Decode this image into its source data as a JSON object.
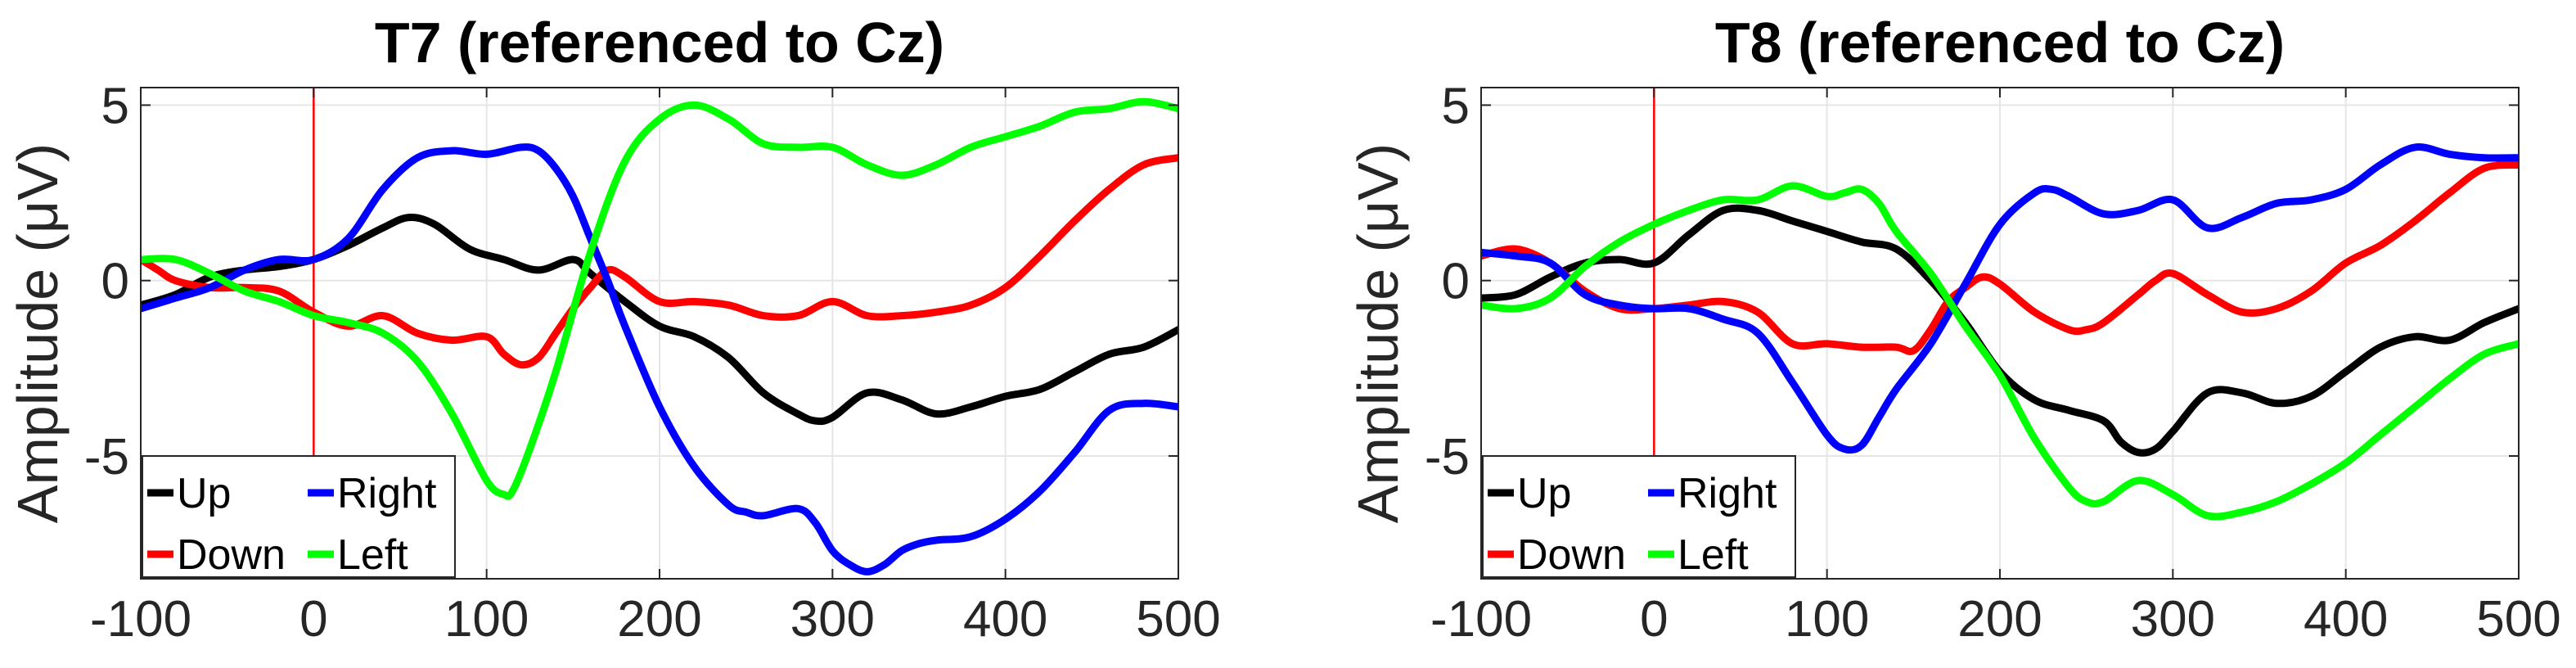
{
  "chart_data": [
    {
      "type": "line",
      "title": "T7 (referenced to Cz)",
      "xlabel": "",
      "ylabel": "Amplitude (μV)",
      "xlim": [
        -100,
        500
      ],
      "ylim": [
        -8.5,
        5.5
      ],
      "xticks": [
        -100,
        0,
        100,
        200,
        300,
        400,
        500
      ],
      "yticks": [
        -5,
        0,
        5
      ],
      "grid": true,
      "stimulus_line": {
        "x": 0,
        "color": "#ff0000"
      },
      "legend": {
        "position": "bottom-left",
        "columns": 2
      },
      "series": [
        {
          "name": "Up",
          "color": "#000000",
          "x": [
            -100,
            -80,
            -60,
            -40,
            -20,
            0,
            20,
            40,
            55,
            70,
            90,
            110,
            130,
            150,
            160,
            180,
            200,
            220,
            240,
            260,
            280,
            290,
            300,
            320,
            340,
            360,
            380,
            400,
            420,
            440,
            460,
            480,
            500
          ],
          "y": [
            -0.7,
            -0.4,
            0.1,
            0.3,
            0.4,
            0.6,
            1.0,
            1.5,
            1.8,
            1.6,
            0.9,
            0.6,
            0.3,
            0.6,
            0.2,
            -0.6,
            -1.3,
            -1.6,
            -2.2,
            -3.2,
            -3.8,
            -4.0,
            -3.9,
            -3.2,
            -3.4,
            -3.8,
            -3.6,
            -3.3,
            -3.1,
            -2.6,
            -2.1,
            -1.9,
            -1.4
          ]
        },
        {
          "name": "Down",
          "color": "#ff0000",
          "x": [
            -100,
            -90,
            -80,
            -60,
            -40,
            -20,
            0,
            20,
            40,
            60,
            80,
            100,
            110,
            120,
            130,
            140,
            150,
            160,
            170,
            180,
            200,
            220,
            240,
            260,
            280,
            300,
            320,
            340,
            360,
            380,
            400,
            420,
            440,
            460,
            480,
            500
          ],
          "y": [
            0.6,
            0.3,
            0.0,
            -0.2,
            -0.2,
            -0.3,
            -0.9,
            -1.3,
            -1.0,
            -1.5,
            -1.7,
            -1.6,
            -2.1,
            -2.4,
            -2.2,
            -1.5,
            -0.8,
            -0.2,
            0.3,
            0.1,
            -0.6,
            -0.6,
            -0.7,
            -1.0,
            -1.0,
            -0.6,
            -1.0,
            -1.0,
            -0.9,
            -0.7,
            -0.2,
            0.7,
            1.7,
            2.6,
            3.3,
            3.5
          ]
        },
        {
          "name": "Right",
          "color": "#0000ff",
          "x": [
            -100,
            -80,
            -60,
            -40,
            -20,
            0,
            20,
            40,
            60,
            80,
            100,
            120,
            130,
            140,
            150,
            160,
            170,
            180,
            200,
            220,
            240,
            250,
            260,
            280,
            290,
            300,
            310,
            320,
            330,
            340,
            350,
            360,
            380,
            400,
            420,
            440,
            460,
            480,
            500
          ],
          "y": [
            -0.8,
            -0.5,
            -0.2,
            0.3,
            0.6,
            0.6,
            1.2,
            2.6,
            3.5,
            3.7,
            3.6,
            3.8,
            3.7,
            3.2,
            2.4,
            1.2,
            0.0,
            -1.3,
            -3.6,
            -5.3,
            -6.4,
            -6.6,
            -6.7,
            -6.5,
            -6.9,
            -7.7,
            -8.1,
            -8.3,
            -8.1,
            -7.7,
            -7.5,
            -7.4,
            -7.3,
            -6.8,
            -6.0,
            -4.9,
            -3.7,
            -3.5,
            -3.6
          ]
        },
        {
          "name": "Left",
          "color": "#00ff00",
          "x": [
            -100,
            -80,
            -60,
            -40,
            -20,
            0,
            20,
            40,
            60,
            80,
            100,
            110,
            115,
            125,
            140,
            160,
            180,
            200,
            220,
            240,
            260,
            280,
            300,
            320,
            340,
            360,
            380,
            400,
            420,
            440,
            460,
            480,
            500
          ],
          "y": [
            0.6,
            0.6,
            0.2,
            -0.3,
            -0.6,
            -1.0,
            -1.2,
            -1.5,
            -2.3,
            -3.8,
            -5.7,
            -6.1,
            -6.0,
            -4.8,
            -2.6,
            0.8,
            3.4,
            4.6,
            5.0,
            4.6,
            3.9,
            3.8,
            3.8,
            3.3,
            3.0,
            3.3,
            3.8,
            4.1,
            4.4,
            4.8,
            4.9,
            5.1,
            4.9
          ]
        }
      ]
    },
    {
      "type": "line",
      "title": "T8 (referenced to Cz)",
      "xlabel": "",
      "ylabel": "Amplitude (μV)",
      "xlim": [
        -100,
        500
      ],
      "ylim": [
        -8.5,
        5.5
      ],
      "xticks": [
        -100,
        0,
        100,
        200,
        300,
        400,
        500
      ],
      "yticks": [
        -5,
        0,
        5
      ],
      "grid": true,
      "stimulus_line": {
        "x": 0,
        "color": "#ff0000"
      },
      "legend": {
        "position": "bottom-left",
        "columns": 2
      },
      "series": [
        {
          "name": "Up",
          "color": "#000000",
          "x": [
            -100,
            -80,
            -60,
            -40,
            -20,
            0,
            20,
            40,
            60,
            80,
            100,
            120,
            140,
            160,
            180,
            200,
            220,
            240,
            260,
            270,
            280,
            290,
            300,
            320,
            340,
            360,
            380,
            400,
            420,
            440,
            460,
            480,
            500
          ],
          "y": [
            -0.5,
            -0.4,
            0.1,
            0.5,
            0.6,
            0.5,
            1.3,
            2.0,
            2.0,
            1.7,
            1.4,
            1.1,
            0.9,
            0.0,
            -1.2,
            -2.6,
            -3.4,
            -3.7,
            -4.0,
            -4.6,
            -4.9,
            -4.8,
            -4.3,
            -3.2,
            -3.2,
            -3.5,
            -3.3,
            -2.6,
            -1.9,
            -1.6,
            -1.7,
            -1.2,
            -0.8
          ]
        },
        {
          "name": "Down",
          "color": "#ff0000",
          "x": [
            -100,
            -80,
            -60,
            -40,
            -20,
            0,
            20,
            40,
            60,
            80,
            100,
            120,
            140,
            150,
            160,
            170,
            180,
            190,
            200,
            220,
            240,
            250,
            260,
            280,
            290,
            300,
            320,
            340,
            360,
            380,
            400,
            420,
            440,
            460,
            480,
            500
          ],
          "y": [
            0.7,
            0.9,
            0.5,
            -0.3,
            -0.8,
            -0.8,
            -0.7,
            -0.6,
            -0.9,
            -1.8,
            -1.8,
            -1.9,
            -1.9,
            -2.0,
            -1.4,
            -0.6,
            -0.2,
            0.1,
            -0.1,
            -0.9,
            -1.4,
            -1.4,
            -1.2,
            -0.4,
            0.0,
            0.2,
            -0.4,
            -0.9,
            -0.8,
            -0.3,
            0.5,
            1.0,
            1.7,
            2.5,
            3.2,
            3.3
          ]
        },
        {
          "name": "Right",
          "color": "#0000ff",
          "x": [
            -100,
            -80,
            -60,
            -40,
            -20,
            0,
            20,
            40,
            60,
            80,
            100,
            110,
            120,
            130,
            140,
            160,
            180,
            200,
            220,
            230,
            240,
            260,
            280,
            300,
            320,
            340,
            360,
            380,
            400,
            420,
            440,
            460,
            480,
            500
          ],
          "y": [
            0.8,
            0.7,
            0.5,
            -0.4,
            -0.7,
            -0.8,
            -0.8,
            -1.1,
            -1.5,
            -2.9,
            -4.4,
            -4.8,
            -4.7,
            -3.9,
            -3.1,
            -1.8,
            -0.1,
            1.6,
            2.5,
            2.6,
            2.4,
            1.9,
            2.0,
            2.3,
            1.5,
            1.8,
            2.2,
            2.3,
            2.6,
            3.3,
            3.8,
            3.6,
            3.5,
            3.5
          ]
        },
        {
          "name": "Left",
          "color": "#00ff00",
          "x": [
            -100,
            -80,
            -60,
            -40,
            -20,
            0,
            20,
            40,
            60,
            80,
            100,
            110,
            120,
            130,
            140,
            160,
            180,
            200,
            220,
            240,
            250,
            260,
            280,
            300,
            320,
            340,
            360,
            380,
            400,
            420,
            440,
            460,
            480,
            500
          ],
          "y": [
            -0.7,
            -0.8,
            -0.5,
            0.4,
            1.1,
            1.6,
            2.0,
            2.3,
            2.3,
            2.7,
            2.4,
            2.5,
            2.6,
            2.2,
            1.4,
            0.2,
            -1.3,
            -2.7,
            -4.5,
            -5.9,
            -6.3,
            -6.3,
            -5.7,
            -6.1,
            -6.7,
            -6.6,
            -6.3,
            -5.8,
            -5.2,
            -4.4,
            -3.6,
            -2.8,
            -2.1,
            -1.8
          ]
        }
      ]
    }
  ]
}
